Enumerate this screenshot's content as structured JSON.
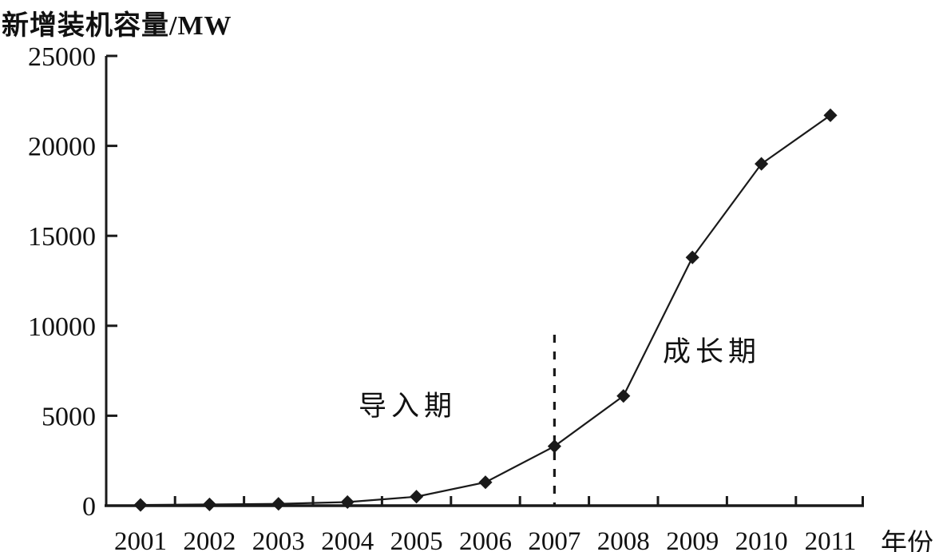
{
  "chart_data": {
    "type": "line",
    "title": "新增装机容量/MW",
    "xlabel": "年份",
    "ylabel": "新增装机容量/MW",
    "categories": [
      2001,
      2002,
      2003,
      2004,
      2005,
      2006,
      2007,
      2008,
      2009,
      2010,
      2011
    ],
    "series": [
      {
        "name": "新增装机容量",
        "values": [
          40,
          70,
          100,
          200,
          500,
          1300,
          3300,
          6100,
          13800,
          19000,
          21700
        ]
      }
    ],
    "ylim": [
      0,
      25000
    ],
    "yticks": [
      0,
      5000,
      10000,
      15000,
      20000,
      25000
    ],
    "grid": false,
    "legend": "none",
    "marker": "diamond",
    "line_color": "#1a1a1a",
    "background_color": "#ffffff",
    "annotations": [
      {
        "text": "导入期",
        "x": 2004.8,
        "y": 5900
      },
      {
        "text": "成长期",
        "x": 2008.7,
        "y": 9000
      }
    ],
    "dashed_vline": {
      "x": 2007,
      "y_top": 9500,
      "y_bottom": 0,
      "style": "dashed"
    }
  }
}
